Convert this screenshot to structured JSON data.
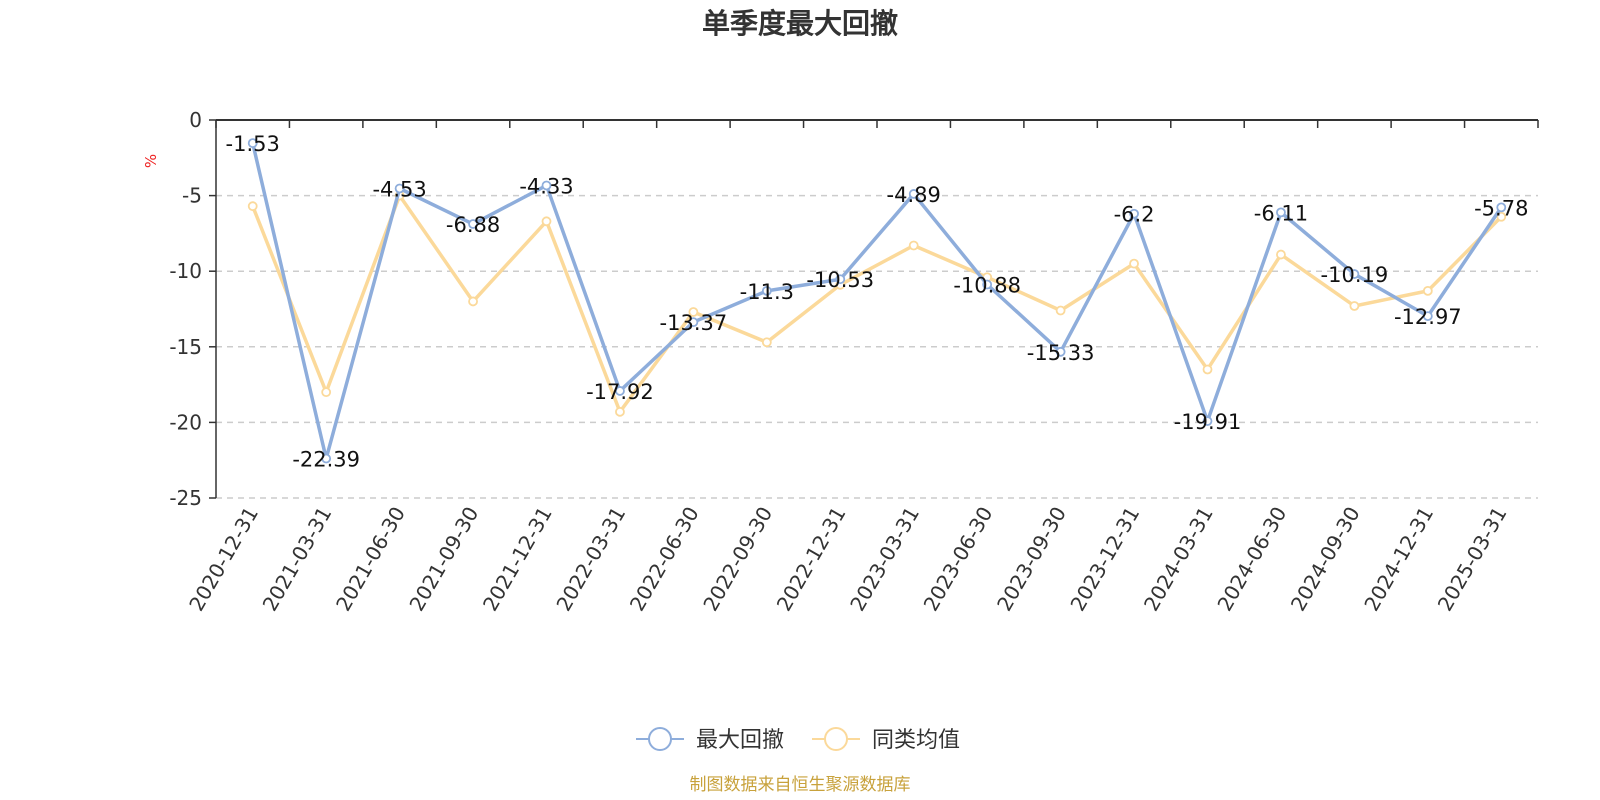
{
  "chart_data": {
    "type": "line",
    "title": "单季度最大回撤",
    "y_unit": "%",
    "ylim": [
      -25,
      0
    ],
    "yticks": [
      0,
      -5,
      -10,
      -15,
      -20,
      -25
    ],
    "grid": true,
    "legend_position": "bottom",
    "categories": [
      "2020-12-31",
      "2021-03-31",
      "2021-06-30",
      "2021-09-30",
      "2021-12-31",
      "2022-03-31",
      "2022-06-30",
      "2022-09-30",
      "2022-12-31",
      "2023-03-31",
      "2023-06-30",
      "2023-09-30",
      "2023-12-31",
      "2024-03-31",
      "2024-06-30",
      "2024-09-30",
      "2024-12-31",
      "2025-03-31"
    ],
    "series": [
      {
        "name": "最大回撤",
        "color": "#8eaddb",
        "values": [
          -1.53,
          -22.39,
          -4.53,
          -6.88,
          -4.33,
          -17.92,
          -13.37,
          -11.3,
          -10.53,
          -4.89,
          -10.88,
          -15.33,
          -6.2,
          -19.91,
          -6.11,
          -10.19,
          -12.97,
          -5.78
        ],
        "labels": [
          "-1.53",
          "-22.39",
          "-4.53",
          "-6.88",
          "-4.33",
          "-17.92",
          "-13.37",
          "-11.3",
          "-10.53",
          "-4.89",
          "-10.88",
          "-15.33",
          "-6.2",
          "-19.91",
          "-6.11",
          "-10.19",
          "-12.97",
          "-5.78"
        ]
      },
      {
        "name": "同类均值",
        "color": "#fbd99a",
        "values": [
          -5.7,
          -18.0,
          -5.0,
          -12.0,
          -6.7,
          -19.3,
          -12.7,
          -14.7,
          -10.9,
          -8.3,
          -10.4,
          -12.6,
          -9.5,
          -16.5,
          -8.9,
          -12.3,
          -11.3,
          -6.4
        ]
      }
    ],
    "source": "制图数据来自恒生聚源数据库"
  }
}
